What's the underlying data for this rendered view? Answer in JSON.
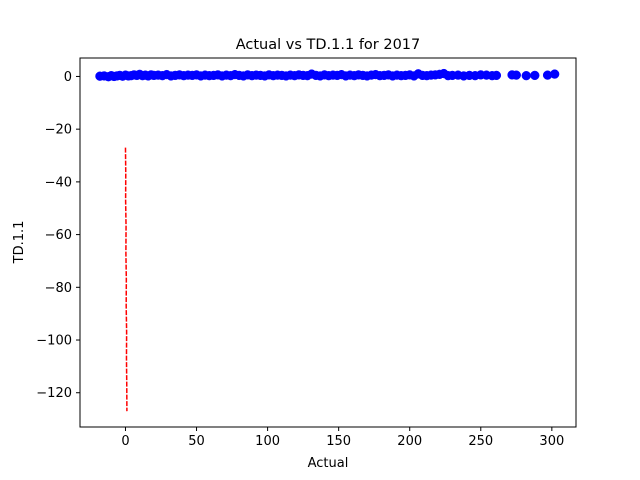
{
  "chart_data": {
    "type": "scatter",
    "title": "Actual vs TD.1.1 for 2017",
    "xlabel": "Actual",
    "ylabel": "TD.1.1",
    "xlim": [
      -32,
      317
    ],
    "ylim": [
      -133,
      7
    ],
    "xticks": [
      0,
      50,
      100,
      150,
      200,
      250,
      300
    ],
    "yticks": [
      0,
      -20,
      -40,
      -60,
      -80,
      -100,
      -120
    ],
    "xtick_labels": [
      "0",
      "50",
      "100",
      "150",
      "200",
      "250",
      "300"
    ],
    "ytick_labels": [
      "0",
      "−20",
      "−40",
      "−60",
      "−80",
      "−100",
      "−120"
    ],
    "grid": false,
    "colors": {
      "points": "#0000ff",
      "line": "#ff0000"
    },
    "series": [
      {
        "kind": "scatter",
        "x": [
          -18,
          -15,
          -12,
          -10,
          -8,
          -6,
          -4,
          -2,
          0,
          2,
          4,
          6,
          8,
          10,
          12,
          14,
          16,
          18,
          20,
          23,
          26,
          29,
          32,
          35,
          38,
          41,
          44,
          47,
          50,
          53,
          56,
          59,
          62,
          65,
          68,
          71,
          74,
          77,
          80,
          83,
          86,
          89,
          92,
          95,
          98,
          101,
          104,
          107,
          110,
          113,
          116,
          119,
          122,
          125,
          128,
          131,
          134,
          137,
          140,
          143,
          146,
          149,
          152,
          155,
          158,
          161,
          164,
          167,
          170,
          173,
          176,
          179,
          182,
          185,
          188,
          191,
          194,
          197,
          200,
          203,
          206,
          209,
          212,
          215,
          218,
          221,
          224,
          227,
          230,
          234,
          238,
          242,
          246,
          250,
          254,
          258,
          261,
          272,
          275,
          282,
          288,
          297,
          302
        ],
        "y": [
          0.1,
          0.2,
          -0.1,
          0.3,
          0.0,
          0.2,
          0.4,
          0.1,
          0.5,
          0.2,
          0.3,
          0.6,
          0.4,
          0.8,
          0.3,
          0.5,
          0.2,
          0.6,
          0.4,
          0.5,
          0.3,
          0.7,
          0.2,
          0.4,
          0.6,
          0.3,
          0.5,
          0.4,
          0.6,
          0.2,
          0.5,
          0.3,
          0.4,
          0.6,
          0.2,
          0.5,
          0.3,
          0.7,
          0.4,
          0.2,
          0.6,
          0.3,
          0.5,
          0.4,
          0.2,
          0.6,
          0.3,
          0.5,
          0.4,
          0.2,
          0.5,
          0.3,
          0.6,
          0.4,
          0.3,
          0.9,
          0.4,
          0.2,
          0.6,
          0.3,
          0.5,
          0.4,
          0.7,
          0.2,
          0.5,
          0.3,
          0.6,
          0.4,
          0.2,
          0.5,
          0.7,
          0.3,
          0.4,
          0.6,
          0.2,
          0.5,
          0.3,
          0.4,
          0.6,
          0.2,
          1.0,
          0.4,
          0.3,
          0.5,
          0.6,
          0.8,
          1.1,
          0.3,
          0.4,
          0.5,
          0.2,
          0.4,
          0.3,
          0.6,
          0.5,
          0.3,
          0.4,
          0.6,
          0.5,
          0.3,
          0.4,
          0.5,
          0.9
        ]
      },
      {
        "kind": "line",
        "x": [
          0,
          0.2,
          0.1,
          0.4,
          0.3,
          0.6,
          0.5,
          0.8,
          0.7,
          0.9,
          1.0
        ],
        "y": [
          -27,
          -37,
          -47,
          -57,
          -67,
          -77,
          -87,
          -97,
          -107,
          -117,
          -127
        ]
      }
    ]
  }
}
